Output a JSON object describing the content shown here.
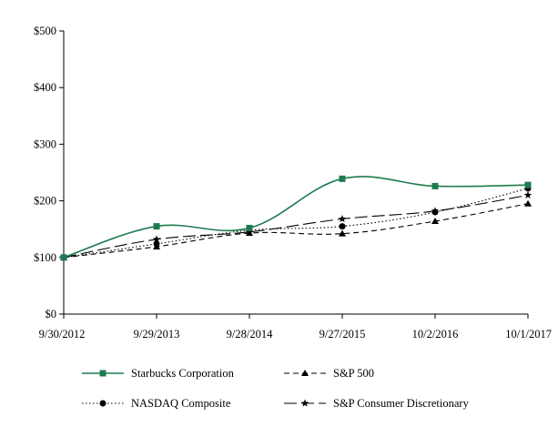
{
  "chart_data": {
    "type": "line",
    "title": "",
    "xlabel": "",
    "ylabel": "",
    "categories": [
      "9/30/2012",
      "9/29/2013",
      "9/28/2014",
      "9/27/2015",
      "10/2/2016",
      "10/1/2017"
    ],
    "y_ticks": [
      "$0",
      "$100",
      "$200",
      "$300",
      "$400",
      "$500"
    ],
    "ylim": [
      0,
      500
    ],
    "grid": false,
    "legend_position": "bottom",
    "series": [
      {
        "name": "Starbucks Corporation",
        "values": [
          100,
          155,
          152,
          239,
          226,
          228
        ],
        "color": "#1e7b4f",
        "dash": "solid",
        "marker": "square"
      },
      {
        "name": "S&P 500",
        "values": [
          100,
          119,
          143,
          142,
          164,
          195
        ],
        "color": "#000000",
        "dash": "dashed",
        "marker": "triangle"
      },
      {
        "name": "NASDAQ Composite",
        "values": [
          100,
          124,
          148,
          155,
          180,
          222
        ],
        "color": "#000000",
        "dash": "dotted",
        "marker": "circle"
      },
      {
        "name": "S&P Consumer Discretionary",
        "values": [
          100,
          132,
          145,
          168,
          182,
          210
        ],
        "color": "#000000",
        "dash": "longdash",
        "marker": "star"
      }
    ]
  }
}
